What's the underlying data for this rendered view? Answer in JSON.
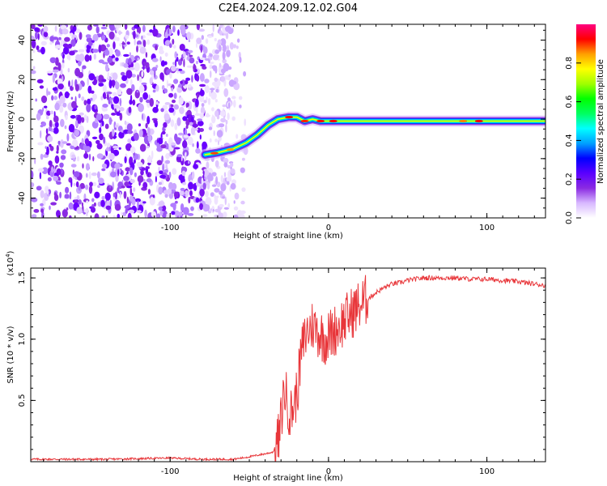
{
  "title": "C2E4.2024.209.12.02.G04",
  "chart_data": [
    {
      "type": "heatmap",
      "xlabel": "Height of straight line (km)",
      "ylabel": "Frequency (Hz)",
      "xlim": [
        -188,
        137
      ],
      "ylim": [
        -50,
        48
      ],
      "x_ticks": [
        -100,
        0,
        100
      ],
      "y_ticks": [
        -40,
        -20,
        0,
        20,
        40
      ],
      "colorbar": {
        "label": "Normalized spectral amplitude",
        "range": [
          0,
          1
        ],
        "ticks": [
          0.0,
          0.2,
          0.4,
          0.6,
          0.8
        ],
        "colors": [
          "#ffffff",
          "#d8b8ff",
          "#8a2be2",
          "#5a00ff",
          "#0000ff",
          "#00a0ff",
          "#00ffff",
          "#00ff60",
          "#00ff00",
          "#a0ff00",
          "#ffff00",
          "#ffa000",
          "#ff0000",
          "#ff0080"
        ]
      },
      "noise_region_x": [
        -188,
        -52
      ],
      "signal_track": {
        "x": [
          -78,
          -70,
          -60,
          -52,
          -45,
          -38,
          -32,
          -25,
          -20,
          -15,
          -10,
          -5,
          0,
          5,
          10,
          20,
          40,
          60,
          80,
          90,
          100,
          110,
          120,
          137
        ],
        "freq": [
          -18,
          -17,
          -15,
          -12,
          -8,
          -3,
          0,
          1,
          1,
          -1,
          0,
          -1,
          -1,
          -1,
          -1,
          -1,
          -1,
          -1,
          -1,
          -1,
          -1,
          -1,
          -1,
          -1
        ]
      }
    },
    {
      "type": "line",
      "xlabel": "Height of straight line (km)",
      "ylabel": "SNR (10 * v/v)",
      "y_multiplier": "(x10",
      "y_multiplier_exp": "4",
      "y_multiplier_close": ")",
      "xlim": [
        -188,
        137
      ],
      "ylim": [
        0,
        1.58
      ],
      "x_ticks": [
        -100,
        0,
        100
      ],
      "y_ticks": [
        0.5,
        1.0,
        1.5
      ],
      "line_color": "#e8363a",
      "series": [
        {
          "x": [
            -188,
            -140,
            -100,
            -80,
            -60,
            -50,
            -42,
            -38,
            -35,
            -31,
            -28,
            -24,
            -20,
            -17,
            -14,
            -10,
            -6,
            -2,
            2,
            6,
            10,
            15,
            20,
            25,
            30,
            35,
            40,
            45,
            50,
            60,
            70,
            80,
            90,
            100,
            110,
            120,
            130,
            137
          ],
          "y": [
            0.02,
            0.02,
            0.03,
            0.02,
            0.02,
            0.04,
            0.06,
            0.07,
            0.08,
            0.2,
            0.6,
            0.38,
            0.55,
            0.9,
            1.05,
            1.12,
            1.05,
            1.0,
            1.05,
            1.1,
            1.15,
            1.22,
            1.28,
            1.33,
            1.38,
            1.42,
            1.45,
            1.46,
            1.48,
            1.5,
            1.5,
            1.5,
            1.49,
            1.49,
            1.48,
            1.47,
            1.45,
            1.44
          ]
        }
      ]
    }
  ]
}
